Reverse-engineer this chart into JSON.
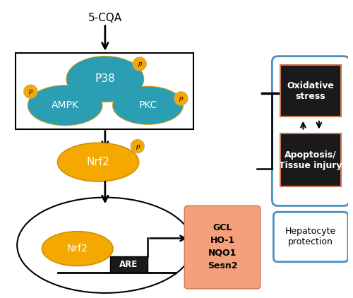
{
  "bg_color": "#ffffff",
  "teal_color": "#2B9EB3",
  "gold_color": "#F5A800",
  "orange_color": "#F4A07A",
  "dark_color": "#1a1a1a",
  "blue_outline": "#4A90C0",
  "title": "5-CQA",
  "kinase_labels": [
    "P38",
    "AMPK",
    "PKC"
  ],
  "nrf2_label": "Nrf2",
  "are_label": "ARE",
  "gene_labels": [
    "GCL",
    "HO-1",
    "NQO1",
    "Sesn2"
  ],
  "oxidative_label": "Oxidative\nstress",
  "apoptosis_label": "Apoptosis/\nTissue injury",
  "hepatocyte_label": "Hepatocyte\nprotection"
}
